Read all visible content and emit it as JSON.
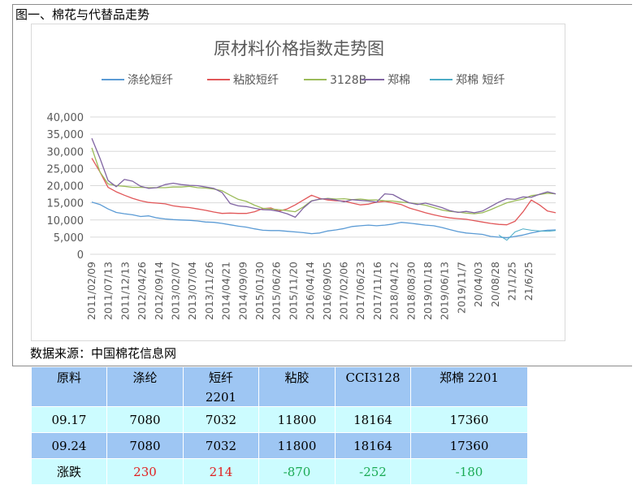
{
  "figure_title": "图一、棉花与代替品走势",
  "source_note": "数据来源：中国棉花信息网",
  "colors": {
    "axis_text": "#595959",
    "grid": "#d9d9d9",
    "up": "#e02020",
    "down": "#1aaa55",
    "table_header_bg": "#9ec6f3",
    "table_light_bg": "#ccfcff"
  },
  "chart_data": {
    "type": "line",
    "title": "原材料价格指数走势图",
    "legend_position": "top",
    "grid": true,
    "ylim": [
      0,
      40000
    ],
    "yticks": [
      "40,000",
      "35,000",
      "30,000",
      "25,000",
      "20,000",
      "15,000",
      "10,000",
      "5,000",
      "0"
    ],
    "xticks": [
      "2011/02/09",
      "2011/07/13",
      "2011/12/13",
      "2012/04/26",
      "2012/09/14",
      "2013/02/07",
      "2013/07/04",
      "2013/11/26",
      "2014/04/21",
      "2014/09/09",
      "2015/01/30",
      "2015/06/26",
      "2015/11/20",
      "2016/04/14",
      "2016/09/05",
      "2017/02/06",
      "2017/06/23",
      "2017/11/16",
      "2018/04/12",
      "2018/08/30",
      "2019/01/18",
      "2019/06/13",
      "2019/11/7",
      "20/04/03",
      "20/08/28",
      "21/1/25",
      "21/6/25"
    ],
    "series": [
      {
        "name": "涤纶短纤",
        "color": "#5b9bd5",
        "width": 1.3,
        "values": [
          15200,
          14500,
          13200,
          12200,
          11800,
          11500,
          11000,
          11200,
          10600,
          10300,
          10100,
          10000,
          9900,
          9700,
          9400,
          9300,
          9000,
          8600,
          8200,
          7900,
          7400,
          7000,
          6900,
          6900,
          6700,
          6500,
          6300,
          6000,
          6200,
          6800,
          7100,
          7500,
          8100,
          8300,
          8500,
          8300,
          8500,
          8800,
          9300,
          9100,
          8800,
          8500,
          8300,
          7800,
          7200,
          6600,
          6200,
          6000,
          5800,
          5200,
          5000,
          4800,
          5200,
          5600,
          6200,
          6700,
          7000,
          7100
        ]
      },
      {
        "name": "粘胶短纤",
        "color": "#e15759",
        "width": 1.3,
        "values": [
          28000,
          24000,
          19500,
          18200,
          17200,
          16300,
          15600,
          15100,
          14900,
          14700,
          14100,
          13800,
          13600,
          13200,
          12800,
          12300,
          11900,
          12000,
          11900,
          11900,
          12400,
          13300,
          13500,
          12600,
          13200,
          14400,
          15800,
          17200,
          16300,
          15800,
          15600,
          15500,
          14900,
          14400,
          14600,
          15200,
          15400,
          15000,
          14500,
          13500,
          12800,
          12100,
          11500,
          11000,
          10600,
          10400,
          10200,
          9800,
          9400,
          9000,
          8700,
          8600,
          9600,
          12400,
          15800,
          14400,
          12600,
          12100
        ]
      },
      {
        "name": "3128B",
        "color": "#9bbb59",
        "width": 1.3,
        "values": [
          31000,
          24000,
          20500,
          20000,
          19800,
          19500,
          19500,
          19400,
          19400,
          19400,
          19600,
          19600,
          19800,
          19400,
          19300,
          19000,
          18500,
          17200,
          16000,
          15400,
          14300,
          13400,
          13200,
          13000,
          12700,
          12400,
          13800,
          15600,
          16000,
          16300,
          16100,
          16200,
          15900,
          16100,
          15800,
          15800,
          15600,
          15500,
          15200,
          15000,
          14700,
          14300,
          13600,
          12900,
          12500,
          12300,
          12000,
          11800,
          12100,
          13000,
          14000,
          15000,
          15600,
          16100,
          17100,
          17400,
          17800,
          17600
        ]
      },
      {
        "name": "郑棉",
        "color": "#8064a2",
        "width": 1.3,
        "values": [
          33800,
          28000,
          21500,
          19700,
          21800,
          21300,
          19800,
          19200,
          19400,
          20300,
          20700,
          20300,
          20100,
          20000,
          19600,
          19200,
          18000,
          14800,
          14100,
          13900,
          13400,
          13000,
          12900,
          12500,
          11800,
          10800,
          13500,
          15500,
          16100,
          16200,
          15800,
          15300,
          15900,
          15700,
          15500,
          15200,
          17600,
          17400,
          16100,
          15000,
          14500,
          14900,
          14300,
          13600,
          12700,
          12200,
          12500,
          12100,
          12600,
          13900,
          15200,
          16200,
          16000,
          16700,
          16600,
          17500,
          18200,
          17600
        ]
      },
      {
        "name": "郑棉 短纤",
        "color": "#4bacc6",
        "width": 1.0,
        "values": [
          null,
          null,
          null,
          null,
          null,
          null,
          null,
          null,
          null,
          null,
          null,
          null,
          null,
          null,
          null,
          null,
          null,
          null,
          null,
          null,
          null,
          null,
          null,
          null,
          null,
          null,
          null,
          null,
          null,
          null,
          null,
          null,
          null,
          null,
          null,
          null,
          null,
          null,
          null,
          null,
          null,
          null,
          null,
          null,
          null,
          null,
          null,
          null,
          null,
          null,
          5600,
          4100,
          6500,
          7400,
          7000,
          6800,
          6700,
          6900
        ]
      }
    ]
  },
  "table": {
    "headers": [
      [
        "原料"
      ],
      [
        "涤纶"
      ],
      [
        "短纤",
        "2201"
      ],
      [
        "粘胶"
      ],
      [
        "CCI3128"
      ],
      [
        "郑棉 2201"
      ]
    ],
    "rows": [
      [
        "09.17",
        "7080",
        "7032",
        "11800",
        "18164",
        "17360"
      ],
      [
        "09.24",
        "7080",
        "7032",
        "11800",
        "18164",
        "17360"
      ],
      [
        "涨跌",
        "230",
        "214",
        "-870",
        "-252",
        "-180"
      ]
    ]
  }
}
